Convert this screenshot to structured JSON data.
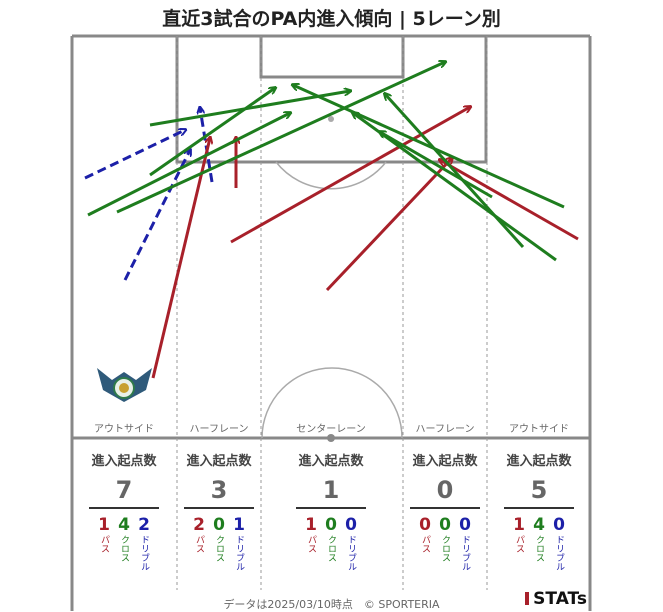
{
  "title": "直近3試合のPA内進入傾向 | 5レーン別",
  "lanes": [
    {
      "name": "アウトサイド",
      "head": "進入起点数",
      "total": "7",
      "pass": "1",
      "cross": "4",
      "dribble": "2"
    },
    {
      "name": "ハーフレーン",
      "head": "進入起点数",
      "total": "3",
      "pass": "2",
      "cross": "0",
      "dribble": "1"
    },
    {
      "name": "センターレーン",
      "head": "進入起点数",
      "total": "1",
      "pass": "1",
      "cross": "0",
      "dribble": "0"
    },
    {
      "name": "ハーフレーン",
      "head": "進入起点数",
      "total": "0",
      "pass": "0",
      "cross": "0",
      "dribble": "0"
    },
    {
      "name": "アウトサイド",
      "head": "進入起点数",
      "total": "5",
      "pass": "1",
      "cross": "4",
      "dribble": "0"
    }
  ],
  "labels": {
    "pass": "パス",
    "cross": "クロス",
    "dribble": "ドリブル"
  },
  "footer": "データは2025/03/10時点　© SPORTERIA",
  "brand": "STATs",
  "colors": {
    "pass": "#a8202a",
    "cross": "#1e7d1e",
    "dribble": "#1c20a8",
    "pitch_line": "#888888"
  },
  "arrows": [
    {
      "kind": "dribble",
      "from": [
        85,
        178
      ],
      "to": [
        185,
        130
      ]
    },
    {
      "kind": "dribble",
      "from": [
        125,
        280
      ],
      "to": [
        190,
        150
      ]
    },
    {
      "kind": "dribble",
      "from": [
        212,
        182
      ],
      "to": [
        200,
        108
      ]
    },
    {
      "kind": "pass",
      "from": [
        153,
        378
      ],
      "to": [
        210,
        138
      ]
    },
    {
      "kind": "pass",
      "from": [
        236,
        188
      ],
      "to": [
        236,
        138
      ]
    },
    {
      "kind": "pass",
      "from": [
        231,
        242
      ],
      "to": [
        470,
        107
      ]
    },
    {
      "kind": "pass",
      "from": [
        327,
        290
      ],
      "to": [
        452,
        158
      ]
    },
    {
      "kind": "pass",
      "from": [
        578,
        239
      ],
      "to": [
        440,
        160
      ]
    },
    {
      "kind": "cross",
      "from": [
        88,
        215
      ],
      "to": [
        290,
        113
      ]
    },
    {
      "kind": "cross",
      "from": [
        117,
        212
      ],
      "to": [
        445,
        62
      ]
    },
    {
      "kind": "cross",
      "from": [
        150,
        125
      ],
      "to": [
        350,
        91
      ]
    },
    {
      "kind": "cross",
      "from": [
        150,
        175
      ],
      "to": [
        275,
        88
      ]
    },
    {
      "kind": "cross",
      "from": [
        523,
        247
      ],
      "to": [
        385,
        94
      ]
    },
    {
      "kind": "cross",
      "from": [
        556,
        260
      ],
      "to": [
        353,
        113
      ]
    },
    {
      "kind": "cross",
      "from": [
        564,
        207
      ],
      "to": [
        293,
        85
      ]
    },
    {
      "kind": "cross",
      "from": [
        492,
        197
      ],
      "to": [
        380,
        132
      ]
    }
  ]
}
